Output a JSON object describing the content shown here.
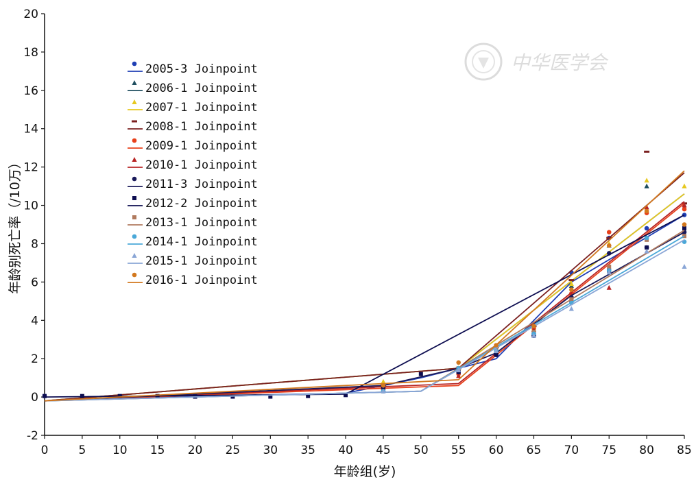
{
  "chart_data": {
    "type": "line",
    "xlabel": "年龄组(岁)",
    "ylabel": "年龄别死亡率（/10万）",
    "xlim": [
      0,
      85
    ],
    "ylim": [
      -2,
      20
    ],
    "x_ticks": [
      0,
      5,
      10,
      15,
      20,
      25,
      30,
      35,
      40,
      45,
      50,
      55,
      60,
      65,
      70,
      75,
      80,
      85
    ],
    "y_ticks": [
      -2,
      0,
      2,
      4,
      6,
      8,
      10,
      12,
      14,
      16,
      18,
      20
    ],
    "grid": false,
    "legend_position": "upper-left",
    "watermark": "中华医学会",
    "series": [
      {
        "name": "2005-3 Joinpoint",
        "color": "#1f3fb4",
        "marker": "circle",
        "points": [
          [
            0,
            -0.2
          ],
          [
            15,
            0.0
          ],
          [
            40,
            0.2
          ],
          [
            50,
            1.0
          ],
          [
            60,
            2.0
          ],
          [
            70,
            6.0
          ],
          [
            85,
            9.5
          ]
        ],
        "observed": [
          [
            0,
            0.05
          ],
          [
            15,
            0.03
          ],
          [
            45,
            0.5
          ],
          [
            55,
            1.3
          ],
          [
            60,
            2.2
          ],
          [
            65,
            3.3
          ],
          [
            70,
            6.5
          ],
          [
            75,
            8.3
          ],
          [
            80,
            8.8
          ],
          [
            85,
            9.5
          ]
        ]
      },
      {
        "name": "2006-1 Joinpoint",
        "color": "#1f4e5f",
        "marker": "triangle",
        "points": [
          [
            0,
            -0.2
          ],
          [
            55,
            1.5
          ],
          [
            85,
            10.6
          ]
        ],
        "observed": [
          [
            45,
            0.5
          ],
          [
            55,
            1.4
          ],
          [
            60,
            2.4
          ],
          [
            65,
            3.5
          ],
          [
            70,
            5.8
          ],
          [
            75,
            7.9
          ],
          [
            80,
            11.0
          ],
          [
            85,
            10.0
          ]
        ]
      },
      {
        "name": "2007-1 Joinpoint",
        "color": "#e6c820",
        "marker": "triangle",
        "points": [
          [
            0,
            -0.2
          ],
          [
            55,
            1.5
          ],
          [
            85,
            10.6
          ]
        ],
        "observed": [
          [
            45,
            0.8
          ],
          [
            55,
            1.5
          ],
          [
            60,
            2.6
          ],
          [
            65,
            3.6
          ],
          [
            70,
            5.9
          ],
          [
            75,
            8.0
          ],
          [
            80,
            11.3
          ],
          [
            85,
            11.0
          ]
        ]
      },
      {
        "name": "2008-1 Joinpoint",
        "color": "#7a1f1f",
        "marker": "dash",
        "points": [
          [
            0,
            -0.2
          ],
          [
            55,
            1.5
          ],
          [
            85,
            11.7
          ]
        ],
        "observed": [
          [
            45,
            0.6
          ],
          [
            55,
            1.5
          ],
          [
            60,
            2.6
          ],
          [
            65,
            3.7
          ],
          [
            70,
            6.1
          ],
          [
            75,
            8.3
          ],
          [
            80,
            12.8
          ],
          [
            85,
            10.1
          ]
        ]
      },
      {
        "name": "2009-1 Joinpoint",
        "color": "#e8401a",
        "marker": "circle",
        "points": [
          [
            0,
            -0.2
          ],
          [
            55,
            0.6
          ],
          [
            85,
            10.1
          ]
        ],
        "observed": [
          [
            45,
            0.4
          ],
          [
            55,
            1.2
          ],
          [
            60,
            2.2
          ],
          [
            65,
            3.6
          ],
          [
            70,
            5.4
          ],
          [
            75,
            8.6
          ],
          [
            80,
            9.6
          ],
          [
            85,
            9.8
          ]
        ]
      },
      {
        "name": "2010-1 Joinpoint",
        "color": "#b82525",
        "marker": "triangle",
        "points": [
          [
            0,
            -0.2
          ],
          [
            55,
            0.7
          ],
          [
            85,
            10.2
          ]
        ],
        "observed": [
          [
            45,
            0.4
          ],
          [
            55,
            1.1
          ],
          [
            60,
            2.3
          ],
          [
            65,
            3.5
          ],
          [
            70,
            5.3
          ],
          [
            75,
            5.7
          ],
          [
            80,
            9.9
          ],
          [
            85,
            10.0
          ]
        ]
      },
      {
        "name": "2011-3 Joinpoint",
        "color": "#1a1a5a",
        "marker": "circle",
        "points": [
          [
            0,
            -0.2
          ],
          [
            45,
            0.6
          ],
          [
            55,
            1.5
          ],
          [
            60,
            2.3
          ],
          [
            70,
            5.3
          ],
          [
            85,
            8.6
          ]
        ],
        "observed": [
          [
            45,
            0.5
          ],
          [
            55,
            1.3
          ],
          [
            60,
            2.2
          ],
          [
            65,
            3.2
          ],
          [
            70,
            5.2
          ],
          [
            75,
            7.5
          ],
          [
            80,
            7.8
          ],
          [
            85,
            8.6
          ]
        ]
      },
      {
        "name": "2012-2 Joinpoint",
        "color": "#0d0d50",
        "marker": "square",
        "points": [
          [
            0,
            0.0
          ],
          [
            40,
            0.15
          ],
          [
            85,
            9.5
          ]
        ],
        "observed": [
          [
            0,
            0.05
          ],
          [
            5,
            0.05
          ],
          [
            10,
            0.05
          ],
          [
            15,
            0.05
          ],
          [
            20,
            0.02
          ],
          [
            25,
            0.02
          ],
          [
            30,
            0.02
          ],
          [
            35,
            0.05
          ],
          [
            40,
            0.1
          ],
          [
            45,
            0.5
          ],
          [
            50,
            1.2
          ],
          [
            55,
            1.3
          ],
          [
            60,
            2.2
          ],
          [
            65,
            3.2
          ],
          [
            70,
            5.0
          ],
          [
            75,
            6.6
          ],
          [
            80,
            7.8
          ],
          [
            85,
            8.8
          ]
        ]
      },
      {
        "name": "2013-1 Joinpoint",
        "color": "#b07a5e",
        "marker": "square",
        "points": [
          [
            0,
            -0.2
          ],
          [
            50,
            0.3
          ],
          [
            85,
            8.7
          ]
        ],
        "observed": [
          [
            45,
            0.3
          ],
          [
            55,
            1.5
          ],
          [
            60,
            2.5
          ],
          [
            65,
            3.4
          ],
          [
            70,
            5.1
          ],
          [
            75,
            6.8
          ],
          [
            80,
            8.2
          ],
          [
            85,
            8.4
          ]
        ]
      },
      {
        "name": "2014-1 Joinpoint",
        "color": "#4aa8d8",
        "marker": "circle",
        "points": [
          [
            0,
            -0.2
          ],
          [
            50,
            0.3
          ],
          [
            85,
            8.4
          ]
        ],
        "observed": [
          [
            45,
            0.3
          ],
          [
            55,
            1.5
          ],
          [
            60,
            2.4
          ],
          [
            65,
            3.3
          ],
          [
            70,
            4.9
          ],
          [
            75,
            6.6
          ],
          [
            80,
            8.3
          ],
          [
            85,
            8.1
          ]
        ]
      },
      {
        "name": "2015-1 Joinpoint",
        "color": "#8aa6d6",
        "marker": "triangle",
        "points": [
          [
            0,
            -0.2
          ],
          [
            50,
            0.3
          ],
          [
            85,
            8.2
          ]
        ],
        "observed": [
          [
            45,
            0.3
          ],
          [
            55,
            1.4
          ],
          [
            60,
            2.4
          ],
          [
            65,
            3.2
          ],
          [
            70,
            4.6
          ],
          [
            75,
            6.5
          ],
          [
            80,
            7.6
          ],
          [
            85,
            6.8
          ]
        ]
      },
      {
        "name": "2016-1 Joinpoint",
        "color": "#d2781e",
        "marker": "circle",
        "points": [
          [
            0,
            -0.2
          ],
          [
            55,
            0.9
          ],
          [
            85,
            11.8
          ]
        ],
        "observed": [
          [
            45,
            0.6
          ],
          [
            55,
            1.8
          ],
          [
            60,
            2.7
          ],
          [
            65,
            3.7
          ],
          [
            70,
            5.6
          ],
          [
            75,
            7.9
          ],
          [
            80,
            9.7
          ],
          [
            85,
            9.0
          ]
        ]
      }
    ]
  }
}
